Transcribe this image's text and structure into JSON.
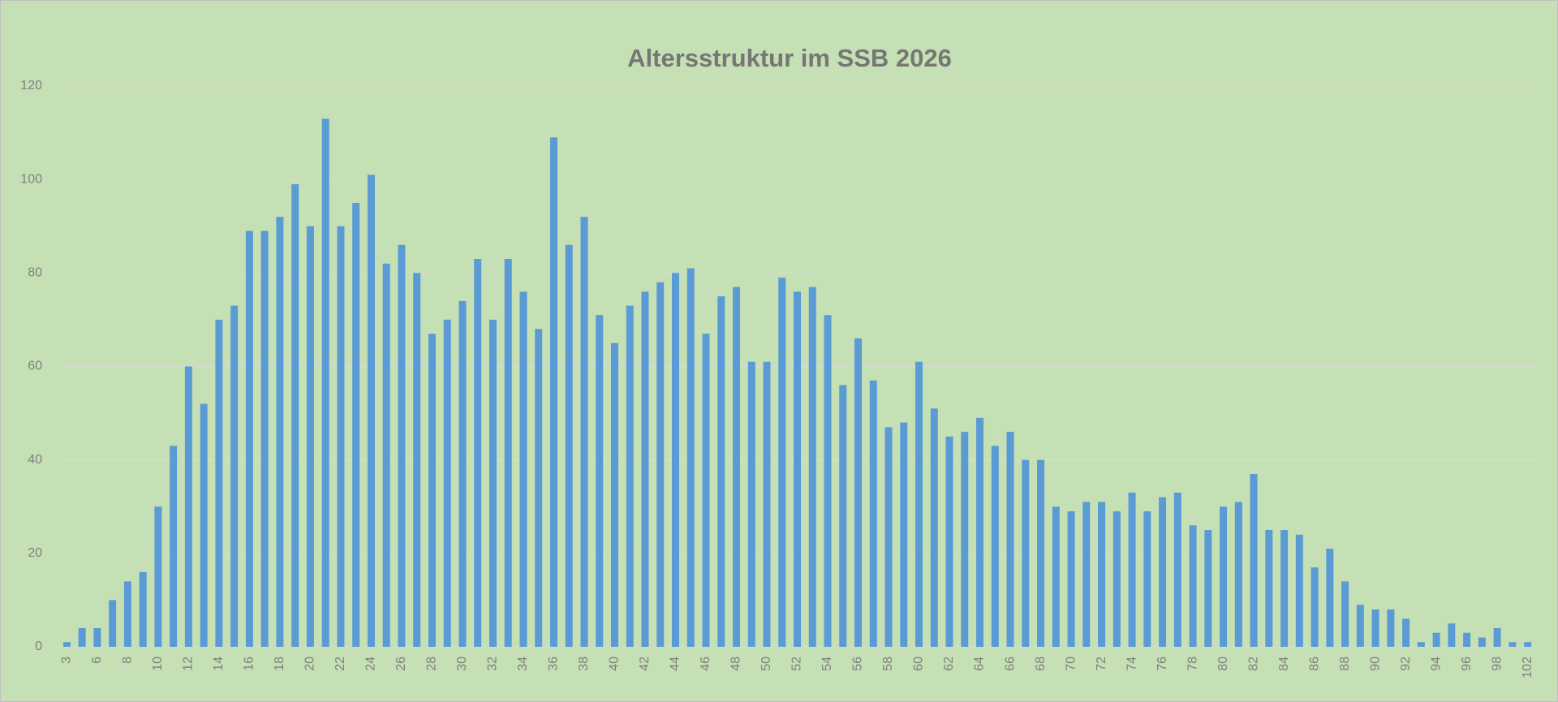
{
  "chart_data": {
    "type": "bar",
    "title": "Altersstruktur im SSB 2026",
    "categories": [
      "3",
      null,
      "6",
      null,
      "8",
      null,
      "10",
      null,
      "12",
      null,
      "14",
      null,
      "16",
      null,
      "18",
      null,
      "20",
      null,
      "22",
      null,
      "24",
      null,
      "26",
      null,
      "28",
      null,
      "30",
      null,
      "32",
      null,
      "34",
      null,
      "36",
      null,
      "38",
      null,
      "40",
      null,
      "42",
      null,
      "44",
      null,
      "46",
      null,
      "48",
      null,
      "50",
      null,
      "52",
      null,
      "54",
      null,
      "56",
      null,
      "58",
      null,
      "60",
      null,
      "62",
      null,
      "64",
      null,
      "66",
      null,
      "68",
      null,
      "70",
      null,
      "72",
      null,
      "74",
      null,
      "76",
      null,
      "78",
      null,
      "80",
      null,
      "82",
      null,
      "84",
      null,
      "86",
      null,
      "88",
      null,
      "90",
      null,
      "92",
      null,
      "94",
      null,
      "96",
      null,
      "98",
      null,
      "102"
    ],
    "values": [
      1,
      4,
      4,
      10,
      14,
      16,
      30,
      43,
      60,
      52,
      70,
      73,
      89,
      89,
      92,
      99,
      90,
      113,
      90,
      95,
      101,
      82,
      86,
      80,
      67,
      70,
      74,
      83,
      70,
      83,
      76,
      68,
      109,
      86,
      92,
      71,
      65,
      73,
      76,
      78,
      80,
      81,
      67,
      75,
      77,
      61,
      61,
      79,
      76,
      77,
      71,
      56,
      66,
      57,
      47,
      48,
      61,
      51,
      45,
      46,
      49,
      43,
      46,
      40,
      40,
      30,
      29,
      31,
      31,
      29,
      33,
      29,
      32,
      33,
      26,
      25,
      30,
      31,
      37,
      25,
      25,
      24,
      17,
      21,
      14,
      9,
      8,
      8,
      6,
      1,
      3,
      5,
      3,
      2,
      4,
      1,
      1
    ],
    "color": "#5b9bd5",
    "ylim": [
      0,
      120
    ],
    "yticks": [
      0,
      20,
      40,
      60,
      80,
      100,
      120
    ],
    "grid": true
  }
}
